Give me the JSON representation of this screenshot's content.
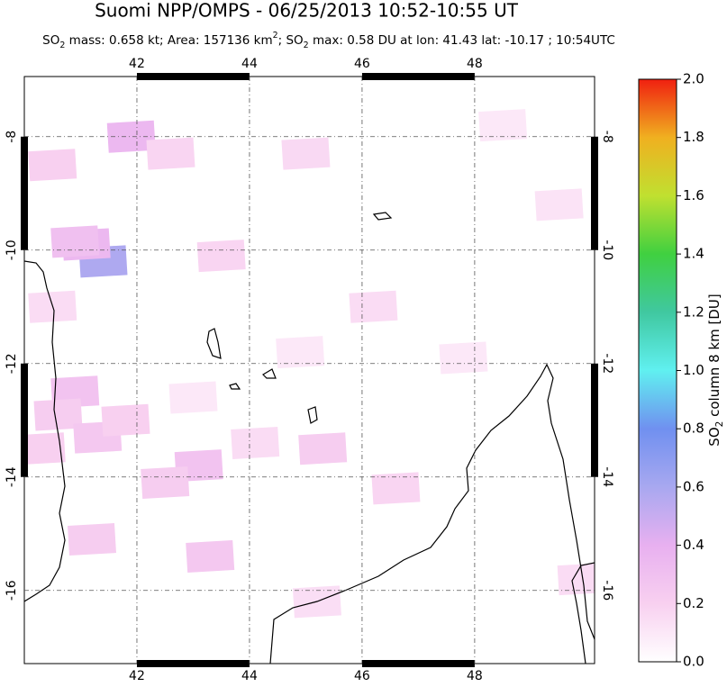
{
  "chart_data": {
    "type": "map",
    "title": "Suomi NPP/OMPS - 06/25/2013 10:52-10:55 UT",
    "subtitle_parts": [
      "SO",
      "2",
      " mass: 0.658 kt; Area: 157136 km",
      "2",
      "; SO",
      "2",
      " max: 0.58 DU at lon: 41.43 lat: -10.17 ; 10:54UTC"
    ],
    "xlim": [
      40,
      50.13
    ],
    "ylim": [
      -17.29,
      -6.94
    ],
    "xticks": [
      42,
      44,
      46,
      48
    ],
    "yticks": [
      -8,
      -10,
      -12,
      -14,
      -16
    ],
    "grid": true,
    "cells": {
      "lon": [
        41.4,
        41.1,
        40.9,
        41.9,
        42.6,
        40.5,
        40.9,
        40.6,
        41.3,
        41.8,
        43.1,
        43.5,
        45.3,
        46.6,
        43.3,
        45.0,
        46.2,
        40.5,
        42.5,
        44.1,
        40.3,
        48.5,
        49.5,
        47.8,
        45.2,
        44.9,
        41.2,
        43.0,
        49.9
      ],
      "lat": [
        -10.2,
        -9.9,
        -9.85,
        -8.0,
        -8.3,
        -8.5,
        -12.5,
        -12.9,
        -13.3,
        -13.0,
        -13.8,
        -10.1,
        -13.5,
        -14.2,
        -15.4,
        -8.3,
        -11.0,
        -11.0,
        -14.1,
        -13.4,
        -13.5,
        -7.8,
        -9.2,
        -11.9,
        -16.2,
        -11.8,
        -15.1,
        -12.6,
        -15.8
      ],
      "values": [
        0.58,
        0.35,
        0.3,
        0.35,
        0.18,
        0.2,
        0.28,
        0.22,
        0.25,
        0.2,
        0.28,
        0.18,
        0.22,
        0.18,
        0.25,
        0.16,
        0.15,
        0.15,
        0.22,
        0.15,
        0.2,
        0.1,
        0.12,
        0.1,
        0.14,
        0.1,
        0.22,
        0.1,
        0.15
      ]
    },
    "colorbar": {
      "label_parts": [
        "SO",
        "2",
        " column 8 km [DU]"
      ],
      "lim": [
        0,
        2
      ],
      "ticks": [
        {
          "value": 0,
          "label": "0.0"
        },
        0.2,
        0.4,
        0.6,
        0.8,
        {
          "value": 1,
          "label": "1.0"
        },
        1.2,
        1.4,
        1.6,
        1.8,
        {
          "value": 2,
          "label": "2.0"
        }
      ],
      "colors": [
        "#ffffff",
        "#f8d0f0",
        "#e8b0f0",
        "#a8a8f0",
        "#7090f0",
        "#60f0f0",
        "#40c8a0",
        "#40d040",
        "#c0e030",
        "#f0b020",
        "#f02010"
      ]
    }
  }
}
